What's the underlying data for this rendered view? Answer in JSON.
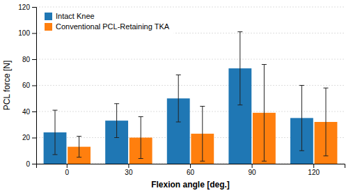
{
  "chart_data": {
    "type": "bar",
    "categories": [
      "0",
      "30",
      "60",
      "90",
      "120"
    ],
    "series": [
      {
        "name": "Intact Knee",
        "values": [
          24,
          33,
          50,
          73,
          35
        ],
        "errors": [
          17,
          13,
          18,
          28,
          25
        ]
      },
      {
        "name": "Conventional PCL-Retaining TKA",
        "values": [
          13,
          20,
          23,
          39,
          32
        ],
        "errors": [
          8,
          16,
          21,
          37,
          26
        ]
      }
    ],
    "xlabel": "Flexion angle [deg.]",
    "ylabel": "PCL force [N]",
    "ylim": [
      0,
      120
    ],
    "yticks": [
      0,
      20,
      40,
      60,
      80,
      100,
      120
    ],
    "grid": true,
    "legend": "upper left"
  }
}
